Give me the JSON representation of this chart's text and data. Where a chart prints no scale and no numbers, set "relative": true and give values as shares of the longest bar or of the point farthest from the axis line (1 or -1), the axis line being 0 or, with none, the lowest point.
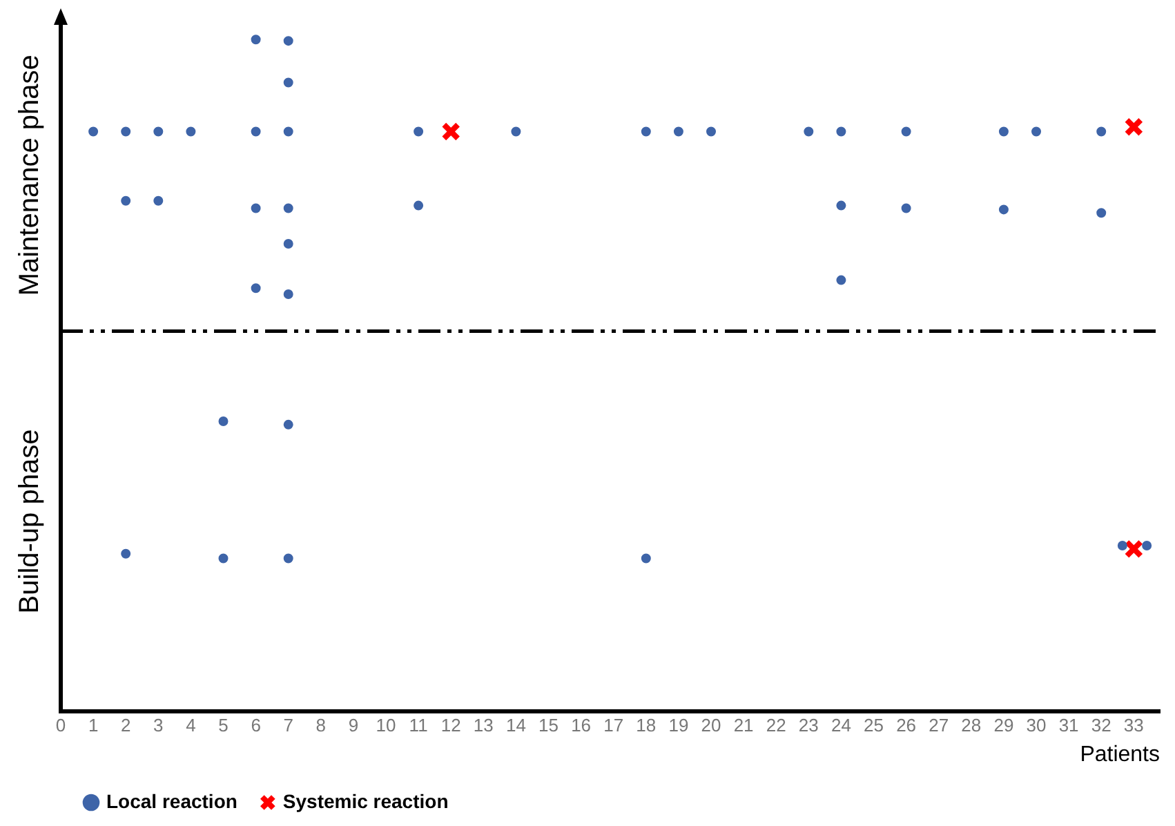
{
  "chart_data": {
    "type": "scatter",
    "relative": true,
    "xlabel": "Patients",
    "xlim": [
      0,
      33.8
    ],
    "xticks": [
      0,
      1,
      2,
      3,
      4,
      5,
      6,
      7,
      8,
      9,
      10,
      11,
      12,
      13,
      14,
      15,
      16,
      17,
      18,
      19,
      20,
      21,
      22,
      23,
      24,
      25,
      26,
      27,
      28,
      29,
      30,
      31,
      32,
      33
    ],
    "annotations": [
      "Maintenance phase",
      "Build-up phase"
    ],
    "ref_lines": [
      {
        "axis": "y",
        "value": 0.566,
        "color": "#000000",
        "line_style": "dashdot"
      }
    ],
    "legend": "bottom left",
    "grid": false,
    "series": [
      {
        "name": "Local reaction",
        "color": "#3e64a8",
        "marker": "circle",
        "x": [
          1,
          2,
          2,
          2,
          3,
          3,
          4,
          5,
          5,
          6,
          6,
          6,
          6,
          7,
          7,
          7,
          7,
          7,
          7,
          7,
          7,
          11,
          11,
          14,
          18,
          18,
          19,
          20,
          23,
          24,
          24,
          24,
          26,
          26,
          29,
          29,
          30,
          32,
          32,
          32.65,
          33.4
        ],
        "values": [
          0.863,
          0.863,
          0.76,
          0.235,
          0.863,
          0.76,
          0.863,
          0.432,
          0.228,
          1.0,
          0.863,
          0.749,
          0.63,
          0.998,
          0.936,
          0.863,
          0.749,
          0.696,
          0.621,
          0.427,
          0.228,
          0.863,
          0.753,
          0.863,
          0.863,
          0.228,
          0.863,
          0.863,
          0.863,
          0.863,
          0.753,
          0.642,
          0.863,
          0.749,
          0.863,
          0.747,
          0.863,
          0.863,
          0.742,
          0.247,
          0.247
        ]
      },
      {
        "name": "Systemic reaction",
        "color": "#ff0000",
        "marker": "cross",
        "x": [
          12,
          33,
          33
        ],
        "values": [
          0.863,
          0.87,
          0.242
        ]
      }
    ]
  }
}
